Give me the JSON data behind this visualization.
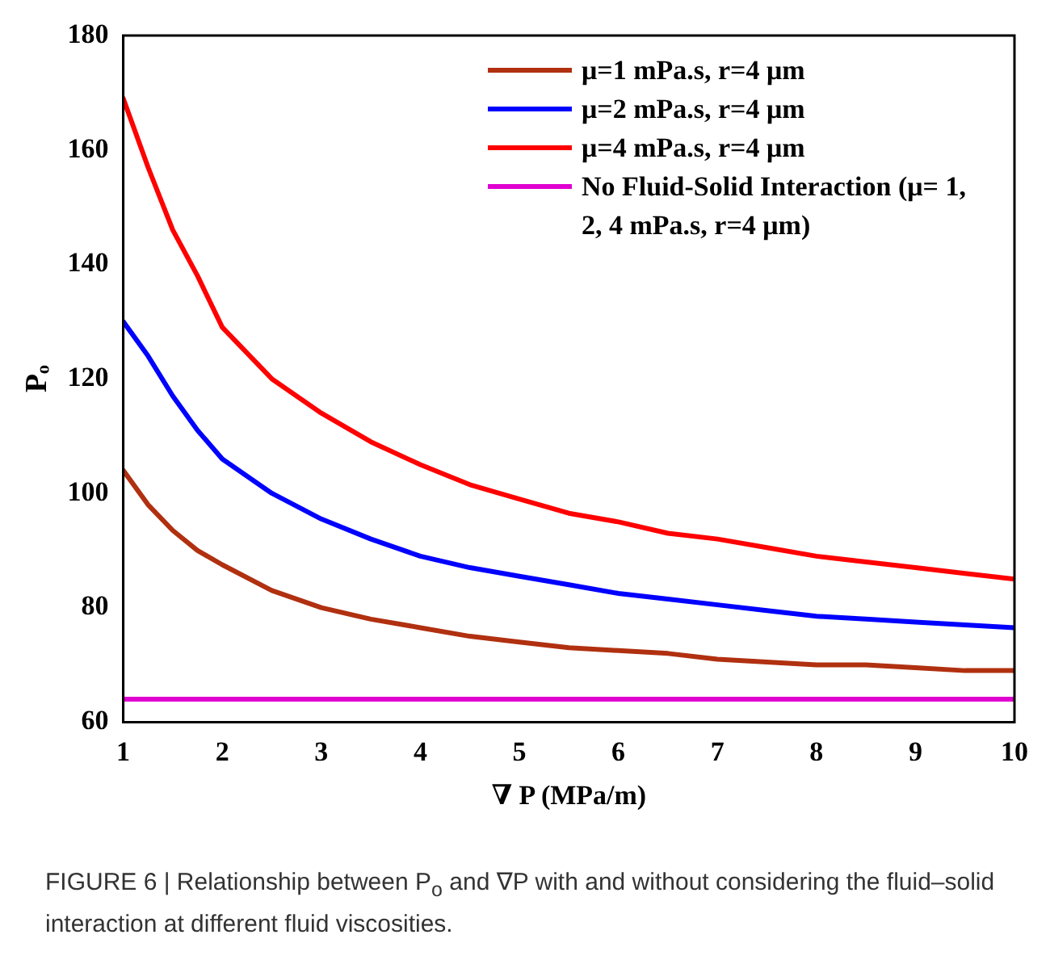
{
  "chart_data": {
    "type": "line",
    "xlabel": "∇ P (MPa/m)",
    "ylabel": "Pₒ",
    "x": [
      1,
      1.25,
      1.5,
      1.75,
      2,
      2.5,
      3,
      3.5,
      4,
      4.5,
      5,
      5.5,
      6,
      6.5,
      7,
      7.5,
      8,
      8.5,
      9,
      9.5,
      10
    ],
    "series": [
      {
        "name": "μ=1 mPa.s, r=4 μm",
        "color": "#b03010",
        "values": [
          104,
          98,
          93.5,
          90,
          87.5,
          83,
          80,
          78,
          76.5,
          75,
          74,
          73,
          72.5,
          72,
          71,
          70.5,
          70,
          70,
          69.5,
          69,
          69
        ]
      },
      {
        "name": "μ=2 mPa.s, r=4 μm",
        "color": "#0000ff",
        "values": [
          130,
          124,
          117,
          111,
          106,
          100,
          95.5,
          92,
          89,
          87,
          85.5,
          84,
          82.5,
          81.5,
          80.5,
          79.5,
          78.5,
          78,
          77.5,
          77,
          76.5
        ]
      },
      {
        "name": "μ=4 mPa.s, r=4 μm",
        "color": "#ff0000",
        "values": [
          169,
          157,
          146,
          138,
          129,
          120,
          114,
          109,
          105,
          101.5,
          99,
          96.5,
          95,
          93,
          92,
          90.5,
          89,
          88,
          87,
          86,
          85
        ]
      },
      {
        "name": "No Fluid-Solid Interaction (μ= 1, 2, 4 mPa.s, r=4 μm)",
        "color": "#e000d0",
        "values": [
          64,
          64,
          64,
          64,
          64,
          64,
          64,
          64,
          64,
          64,
          64,
          64,
          64,
          64,
          64,
          64,
          64,
          64,
          64,
          64,
          64
        ]
      }
    ],
    "xlim": [
      1,
      10
    ],
    "xticks": [
      1,
      2,
      3,
      4,
      5,
      6,
      7,
      8,
      9,
      10
    ],
    "ylim": [
      60,
      180
    ],
    "yticks": [
      60,
      80,
      100,
      120,
      140,
      160,
      180
    ],
    "grid": false,
    "legend": "top right",
    "marker": "none",
    "line_style": "solid",
    "annotations": [
      "FIGURE 6 | Relationship between P$_{o}$ and ∇P with and without considering the fluid–solid interaction at different fluid viscosities."
    ]
  }
}
